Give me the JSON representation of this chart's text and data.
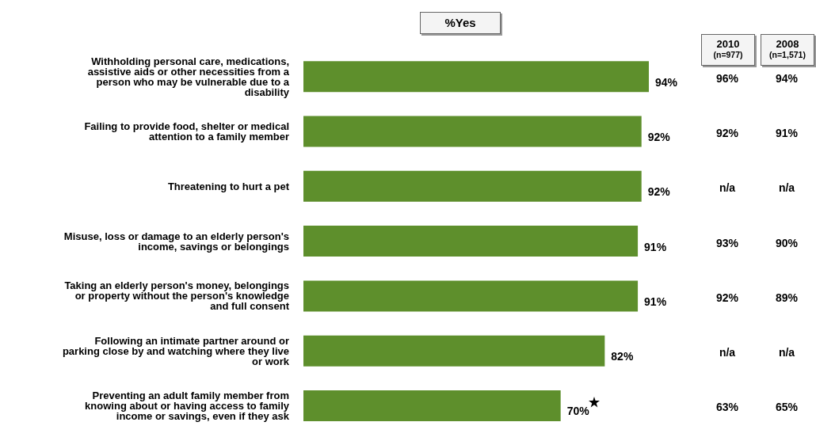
{
  "chart_data": {
    "type": "bar",
    "orientation": "horizontal",
    "title": "%Yes",
    "categories": [
      "Withholding personal care, medications, assistive aids or other necessities from a person who may be vulnerable due to a disability",
      "Failing to provide food, shelter or medical attention to a family member",
      "Threatening to hurt a pet",
      "Misuse, loss or damage to an elderly person's  income, savings or belongings",
      "Taking an elderly person's money, belongings or property  without the person's knowledge and full consent",
      "Following an intimate partner around or parking close by and watching where they live or work",
      "Preventing an adult family member from knowing about or having access to family income or savings, even if they ask"
    ],
    "series": [
      {
        "color": "#5e8f2c",
        "values": [
          94,
          92,
          92,
          91,
          91,
          82,
          70
        ],
        "value_labels": [
          "94%",
          "92%",
          "92%",
          "91%",
          "91%",
          "82%",
          "70%"
        ]
      }
    ],
    "tick_labels": "y",
    "annotations": [
      "2010",
      "(n=977)",
      "2008",
      "(n=1,571)",
      "96%",
      "94%",
      "92%",
      "91%",
      "n/a",
      "n/a",
      "93%",
      "90%",
      "92%",
      "89%",
      "n/a",
      "n/a",
      "63%",
      "65%"
    ]
  }
}
